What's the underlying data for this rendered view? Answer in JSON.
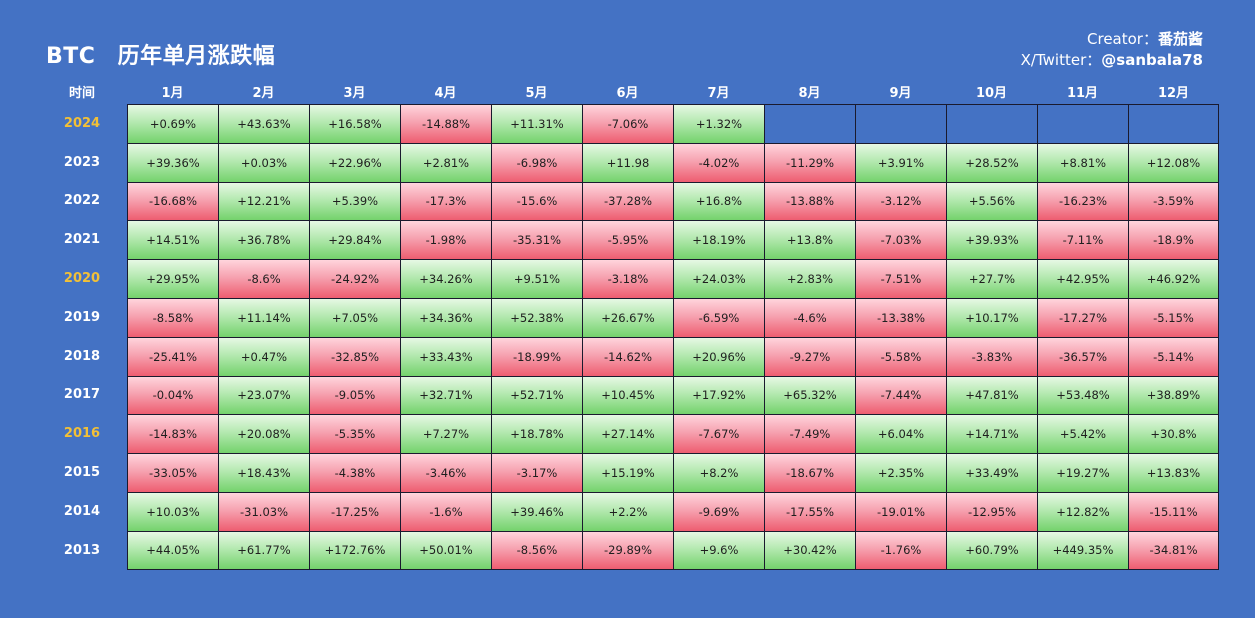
{
  "header": {
    "ticker": "BTC",
    "title": "历年单月涨跌幅",
    "creator_label": "Creator：",
    "creator_name": "番茄酱",
    "twitter_label": "X/Twitter：",
    "twitter_handle": "@sanbala78"
  },
  "colors": {
    "background": "#4472c4",
    "positive": "#74d26c",
    "negative": "#ee5d70",
    "highlight_year": "#f2c037"
  },
  "chart_data": {
    "type": "table",
    "title": "BTC 历年单月涨跌幅",
    "row_header_label": "时间",
    "columns": [
      "1月",
      "2月",
      "3月",
      "4月",
      "5月",
      "6月",
      "7月",
      "8月",
      "9月",
      "10月",
      "11月",
      "12月"
    ],
    "highlighted_years": [
      "2024",
      "2020",
      "2016"
    ],
    "rows": [
      {
        "year": "2024",
        "values": [
          "+0.69%",
          "+43.63%",
          "+16.58%",
          "-14.88%",
          "+11.31%",
          "-7.06%",
          "+1.32%",
          "",
          "",
          "",
          "",
          ""
        ]
      },
      {
        "year": "2023",
        "values": [
          "+39.36%",
          "+0.03%",
          "+22.96%",
          "+2.81%",
          "-6.98%",
          "+11.98",
          "-4.02%",
          "-11.29%",
          "+3.91%",
          "+28.52%",
          "+8.81%",
          "+12.08%"
        ]
      },
      {
        "year": "2022",
        "values": [
          "-16.68%",
          "+12.21%",
          "+5.39%",
          "-17.3%",
          "-15.6%",
          "-37.28%",
          "+16.8%",
          "-13.88%",
          "-3.12%",
          "+5.56%",
          "-16.23%",
          "-3.59%"
        ]
      },
      {
        "year": "2021",
        "values": [
          "+14.51%",
          "+36.78%",
          "+29.84%",
          "-1.98%",
          "-35.31%",
          "-5.95%",
          "+18.19%",
          "+13.8%",
          "-7.03%",
          "+39.93%",
          "-7.11%",
          "-18.9%"
        ]
      },
      {
        "year": "2020",
        "values": [
          "+29.95%",
          "-8.6%",
          "-24.92%",
          "+34.26%",
          "+9.51%",
          "-3.18%",
          "+24.03%",
          "+2.83%",
          "-7.51%",
          "+27.7%",
          "+42.95%",
          "+46.92%"
        ]
      },
      {
        "year": "2019",
        "values": [
          "-8.58%",
          "+11.14%",
          "+7.05%",
          "+34.36%",
          "+52.38%",
          "+26.67%",
          "-6.59%",
          "-4.6%",
          "-13.38%",
          "+10.17%",
          "-17.27%",
          "-5.15%"
        ]
      },
      {
        "year": "2018",
        "values": [
          "-25.41%",
          "+0.47%",
          "-32.85%",
          "+33.43%",
          "-18.99%",
          "-14.62%",
          "+20.96%",
          "-9.27%",
          "-5.58%",
          "-3.83%",
          "-36.57%",
          "-5.14%"
        ]
      },
      {
        "year": "2017",
        "values": [
          "-0.04%",
          "+23.07%",
          "-9.05%",
          "+32.71%",
          "+52.71%",
          "+10.45%",
          "+17.92%",
          "+65.32%",
          "-7.44%",
          "+47.81%",
          "+53.48%",
          "+38.89%"
        ]
      },
      {
        "year": "2016",
        "values": [
          "-14.83%",
          "+20.08%",
          "-5.35%",
          "+7.27%",
          "+18.78%",
          "+27.14%",
          "-7.67%",
          "-7.49%",
          "+6.04%",
          "+14.71%",
          "+5.42%",
          "+30.8%"
        ]
      },
      {
        "year": "2015",
        "values": [
          "-33.05%",
          "+18.43%",
          "-4.38%",
          "-3.46%",
          "-3.17%",
          "+15.19%",
          "+8.2%",
          "-18.67%",
          "+2.35%",
          "+33.49%",
          "+19.27%",
          "+13.83%"
        ]
      },
      {
        "year": "2014",
        "values": [
          "+10.03%",
          "-31.03%",
          "-17.25%",
          "-1.6%",
          "+39.46%",
          "+2.2%",
          "-9.69%",
          "-17.55%",
          "-19.01%",
          "-12.95%",
          "+12.82%",
          "-15.11%"
        ]
      },
      {
        "year": "2013",
        "values": [
          "+44.05%",
          "+61.77%",
          "+172.76%",
          "+50.01%",
          "-8.56%",
          "-29.89%",
          "+9.6%",
          "+30.42%",
          "-1.76%",
          "+60.79%",
          "+449.35%",
          "-34.81%"
        ]
      }
    ]
  }
}
